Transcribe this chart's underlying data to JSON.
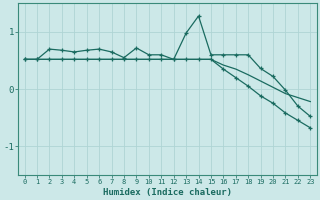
{
  "xlabel": "Humidex (Indice chaleur)",
  "bg_color": "#cce8e8",
  "line_color": "#1a6b60",
  "grid_color": "#afd4d4",
  "spine_color": "#3a8a7a",
  "xlim": [
    -0.5,
    23.5
  ],
  "ylim": [
    -1.5,
    1.5
  ],
  "yticks": [
    -1,
    0,
    1
  ],
  "xticks": [
    0,
    1,
    2,
    3,
    4,
    5,
    6,
    7,
    8,
    9,
    10,
    11,
    12,
    13,
    14,
    15,
    16,
    17,
    18,
    19,
    20,
    21,
    22,
    23
  ],
  "series1_x": [
    0,
    1,
    2,
    3,
    4,
    5,
    6,
    7,
    8,
    9,
    10,
    11,
    12,
    13,
    14,
    15,
    16,
    17,
    18,
    19,
    20,
    21,
    22,
    23
  ],
  "series1_y": [
    0.52,
    0.52,
    0.7,
    0.68,
    0.65,
    0.68,
    0.7,
    0.65,
    0.55,
    0.72,
    0.6,
    0.6,
    0.52,
    0.98,
    1.28,
    0.6,
    0.6,
    0.6,
    0.6,
    0.36,
    0.22,
    -0.02,
    -0.3,
    -0.48
  ],
  "series2_x": [
    0,
    1,
    2,
    3,
    4,
    5,
    6,
    7,
    8,
    9,
    10,
    11,
    12,
    13,
    14,
    15,
    16,
    17,
    18,
    19,
    20,
    21,
    22,
    23
  ],
  "series2_y": [
    0.52,
    0.52,
    0.52,
    0.52,
    0.52,
    0.52,
    0.52,
    0.52,
    0.52,
    0.52,
    0.52,
    0.52,
    0.52,
    0.52,
    0.52,
    0.52,
    0.42,
    0.35,
    0.25,
    0.14,
    0.03,
    -0.08,
    -0.15,
    -0.22
  ],
  "series3_x": [
    0,
    1,
    2,
    3,
    4,
    5,
    6,
    7,
    8,
    9,
    10,
    11,
    12,
    13,
    14,
    15,
    16,
    17,
    18,
    19,
    20,
    21,
    22,
    23
  ],
  "series3_y": [
    0.52,
    0.52,
    0.52,
    0.52,
    0.52,
    0.52,
    0.52,
    0.52,
    0.52,
    0.52,
    0.52,
    0.52,
    0.52,
    0.52,
    0.52,
    0.52,
    0.35,
    0.2,
    0.05,
    -0.12,
    -0.25,
    -0.42,
    -0.55,
    -0.68
  ]
}
